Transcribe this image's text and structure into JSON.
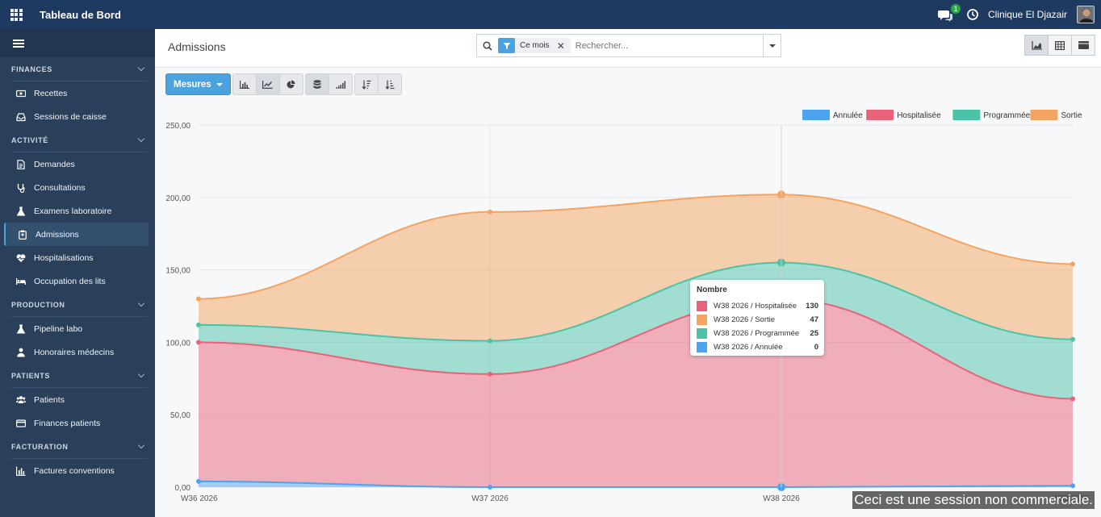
{
  "topbar": {
    "title": "Tableau de Bord",
    "chat_badge": "1",
    "company": "Clinique El Djazair"
  },
  "sidebar": {
    "sections": [
      {
        "label": "FINANCES",
        "items": [
          {
            "label": "Recettes",
            "icon": "money-icon"
          },
          {
            "label": "Sessions de caisse",
            "icon": "inbox-icon"
          }
        ]
      },
      {
        "label": "ACTIVITÉ",
        "items": [
          {
            "label": "Demandes",
            "icon": "file-icon"
          },
          {
            "label": "Consultations",
            "icon": "stethoscope-icon"
          },
          {
            "label": "Examens laboratoire",
            "icon": "flask-icon"
          },
          {
            "label": "Admissions",
            "icon": "clipboard-icon",
            "active": true
          },
          {
            "label": "Hospitalisations",
            "icon": "heartbeat-icon"
          },
          {
            "label": "Occupation des lits",
            "icon": "bed-icon"
          }
        ]
      },
      {
        "label": "PRODUCTION",
        "items": [
          {
            "label": "Pipeline labo",
            "icon": "flask-icon"
          },
          {
            "label": "Honoraires médecins",
            "icon": "doctor-icon"
          }
        ]
      },
      {
        "label": "PATIENTS",
        "items": [
          {
            "label": "Patients",
            "icon": "users-icon"
          },
          {
            "label": "Finances patients",
            "icon": "credit-card-icon"
          }
        ]
      },
      {
        "label": "FACTURATION",
        "items": [
          {
            "label": "Factures conventions",
            "icon": "bar-chart-icon"
          }
        ]
      }
    ]
  },
  "main": {
    "breadcrumb": "Admissions",
    "search": {
      "facet": "Ce mois",
      "placeholder": "Rechercher..."
    },
    "measures_label": "Mesures"
  },
  "chart_data": {
    "type": "area",
    "stacked": true,
    "categories": [
      "W36 2026",
      "W37 2026",
      "W38 2026",
      "W39 2026"
    ],
    "yticks": [
      "0,00",
      "50,00",
      "100,00",
      "150,00",
      "200,00",
      "250,00"
    ],
    "ylim": [
      0,
      250
    ],
    "grid": true,
    "legend_position": "top-right",
    "series": [
      {
        "name": "Annulée",
        "color": "#4da3ee",
        "values": [
          4,
          0,
          0,
          1
        ]
      },
      {
        "name": "Hospitalisée",
        "color": "#e8637a",
        "values": [
          96,
          78,
          130,
          60
        ]
      },
      {
        "name": "Programmée",
        "color": "#4cc2a7",
        "values": [
          12,
          23,
          25,
          41
        ]
      },
      {
        "name": "Sortie",
        "color": "#f4a460",
        "values": [
          18,
          89,
          47,
          52
        ]
      }
    ]
  },
  "tooltip": {
    "title": "Nombre",
    "rows": [
      {
        "label": "W38 2026 / Hospitalisée",
        "value": "130",
        "color": "#e8637a"
      },
      {
        "label": "W38 2026 / Sortie",
        "value": "47",
        "color": "#f4a460"
      },
      {
        "label": "W38 2026 / Programmée",
        "value": "25",
        "color": "#4cc2a7"
      },
      {
        "label": "W38 2026 / Annulée",
        "value": "0",
        "color": "#4da3ee"
      }
    ]
  },
  "watermark": "Ceci est une session non commerciale."
}
